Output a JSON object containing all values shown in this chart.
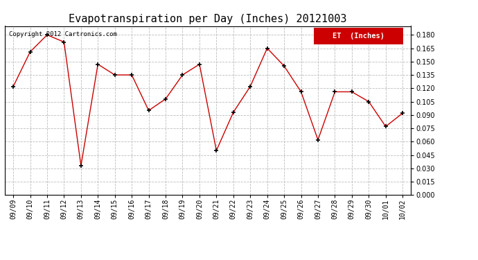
{
  "title": "Evapotranspiration per Day (Inches) 20121003",
  "copyright": "Copyright 2012 Cartronics.com",
  "legend_label": "ET  (Inches)",
  "legend_bg": "#cc0000",
  "legend_text_color": "#ffffff",
  "dates": [
    "09/09",
    "09/10",
    "09/11",
    "09/12",
    "09/13",
    "09/14",
    "09/15",
    "09/16",
    "09/17",
    "09/18",
    "09/19",
    "09/20",
    "09/21",
    "09/22",
    "09/23",
    "09/24",
    "09/25",
    "09/26",
    "09/27",
    "09/28",
    "09/29",
    "09/30",
    "10/01",
    "10/02"
  ],
  "values": [
    0.122,
    0.161,
    0.18,
    0.172,
    0.033,
    0.147,
    0.135,
    0.135,
    0.095,
    0.108,
    0.135,
    0.147,
    0.05,
    0.093,
    0.122,
    0.165,
    0.145,
    0.116,
    0.062,
    0.116,
    0.116,
    0.105,
    0.077,
    0.092
  ],
  "line_color": "#cc0000",
  "marker": "+",
  "marker_color": "#000000",
  "marker_size": 5,
  "ylim": [
    0.0,
    0.19
  ],
  "yticks": [
    0.0,
    0.015,
    0.03,
    0.045,
    0.06,
    0.075,
    0.09,
    0.105,
    0.12,
    0.135,
    0.15,
    0.165,
    0.18
  ],
  "grid_color": "#bbbbbb",
  "grid_style": "--",
  "bg_color": "#ffffff",
  "title_fontsize": 11,
  "copyright_fontsize": 6.5,
  "tick_fontsize": 7,
  "legend_fontsize": 7.5
}
